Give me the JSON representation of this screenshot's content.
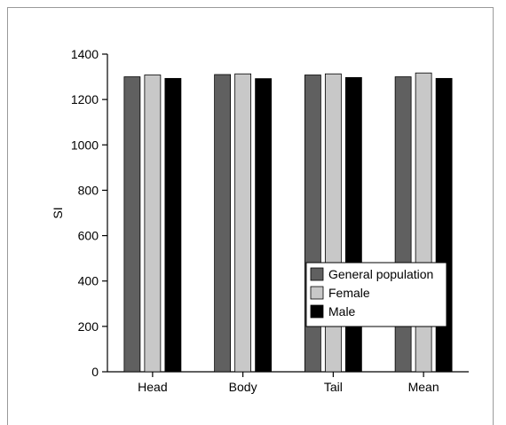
{
  "chart_data": {
    "type": "bar",
    "title": "",
    "xlabel": "",
    "ylabel": "SI",
    "ylim": [
      0,
      1400
    ],
    "yticks": [
      0,
      200,
      400,
      600,
      800,
      1000,
      1200,
      1400
    ],
    "categories": [
      "Head",
      "Body",
      "Tail",
      "Mean"
    ],
    "series": [
      {
        "name": "General population",
        "color": "#606060",
        "values": [
          1300,
          1310,
          1308,
          1300
        ]
      },
      {
        "name": "Female",
        "color": "#c8c8c8",
        "values": [
          1308,
          1313,
          1313,
          1317
        ]
      },
      {
        "name": "Male",
        "color": "#000000",
        "values": [
          1293,
          1292,
          1297,
          1293
        ]
      }
    ],
    "grid": false,
    "legend_position": "lower-right"
  }
}
